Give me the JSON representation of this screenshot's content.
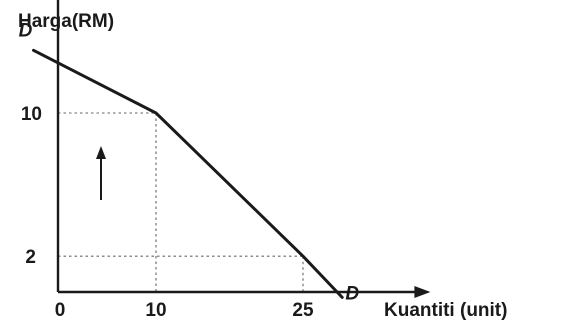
{
  "chart_data": {
    "type": "line",
    "title": "",
    "xlabel": "Kuantiti (unit)",
    "ylabel": "Harga(RM)",
    "origin_label": "0",
    "x_ticks": [
      "10",
      "25"
    ],
    "y_ticks": [
      "10",
      "2"
    ],
    "xlim": [
      0,
      38
    ],
    "ylim": [
      0,
      19
    ],
    "grid": false,
    "series": [
      {
        "name": "D",
        "x": [
          -2.5,
          10,
          25,
          29
        ],
        "y": [
          13.5,
          10,
          2,
          -0.3
        ]
      }
    ],
    "reference_points": [
      {
        "x": 10,
        "y": 10
      },
      {
        "x": 25,
        "y": 2
      }
    ],
    "annotations": [
      {
        "type": "arrow",
        "direction": "up"
      }
    ],
    "colors": {
      "ink": "#1a1a1a",
      "guide": "#666666"
    }
  }
}
